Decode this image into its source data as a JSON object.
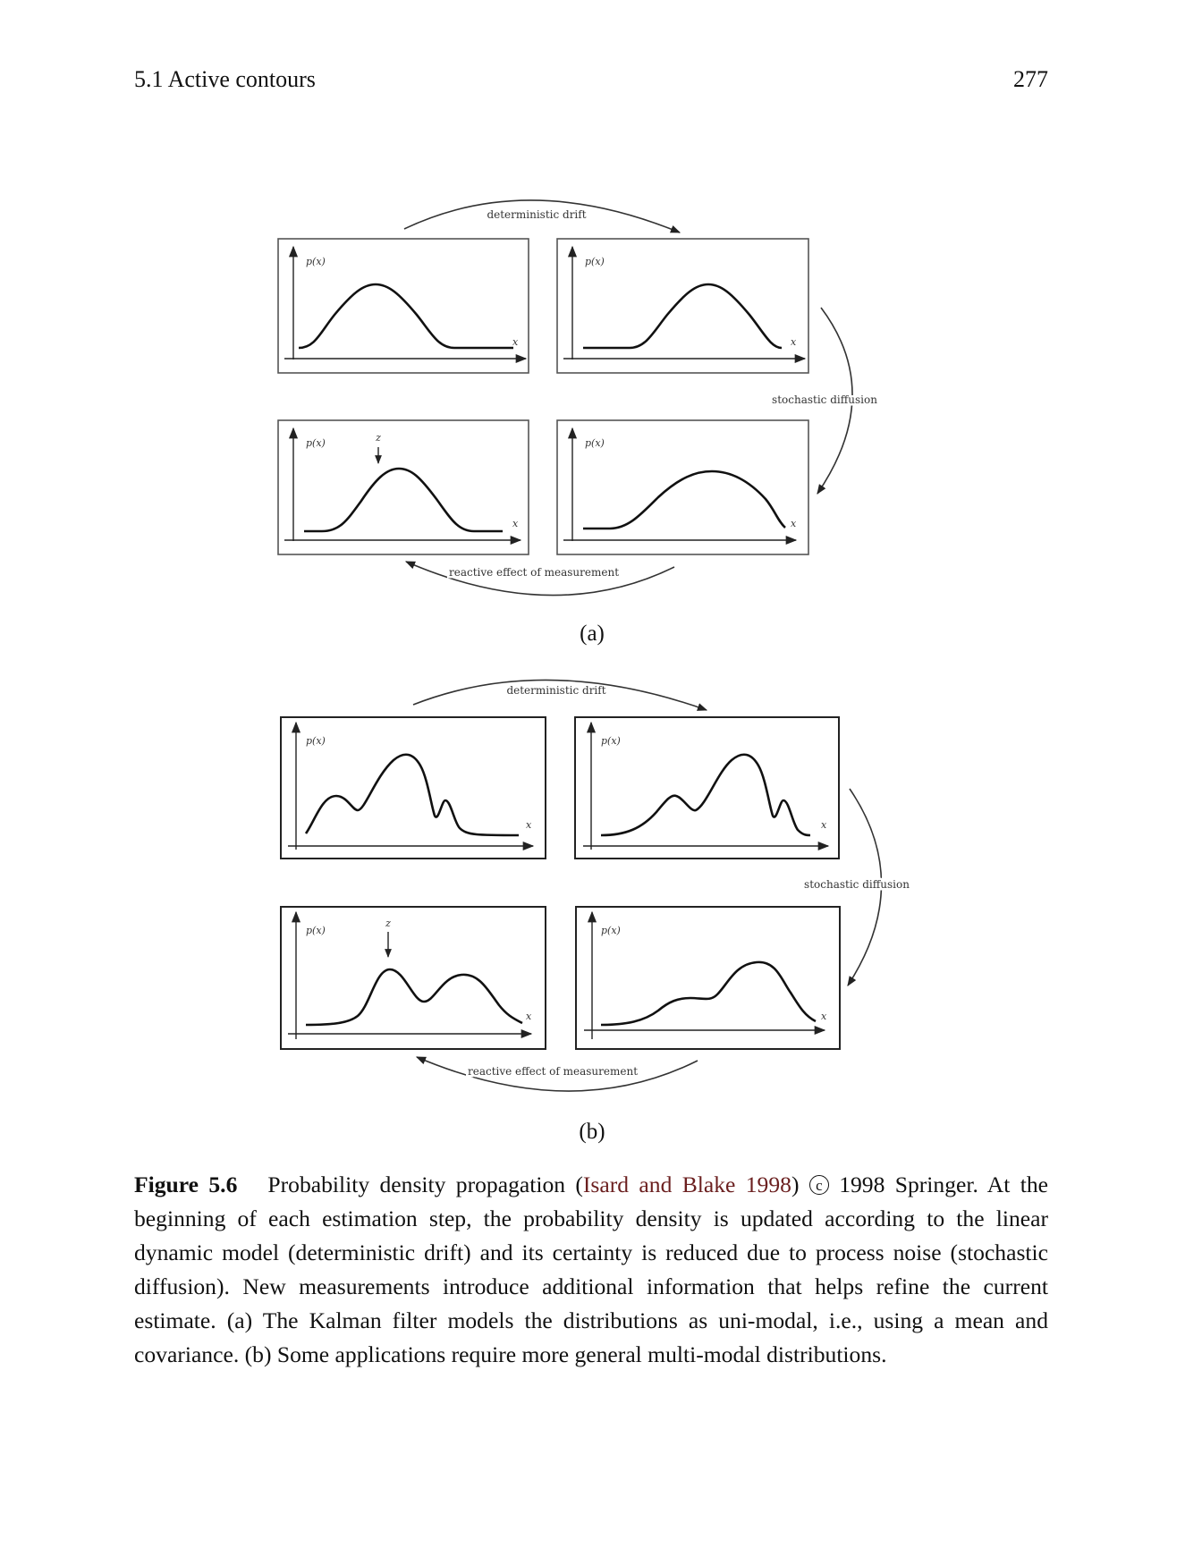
{
  "header": {
    "section": "5.1 Active contours",
    "page_number": "277"
  },
  "figure": {
    "panels": [
      {
        "tag": "(a)",
        "arrows": {
          "top": "deterministic drift",
          "right": "stochastic diffusion",
          "bottom": "reactive effect of measurement"
        },
        "ylabel": "p(x)",
        "xlabel": "x",
        "measurement": "z"
      },
      {
        "tag": "(b)",
        "arrows": {
          "top": "deterministic drift",
          "right": "stochastic diffusion",
          "bottom": "reactive effect of measurement"
        },
        "ylabel": "p(x)",
        "xlabel": "x",
        "measurement": "z"
      }
    ]
  },
  "caption": {
    "label": "Figure 5.6",
    "text_before_cite": "Probability density propagation (",
    "cite": "Isard and Blake 1998",
    "text_after_cite": ")",
    "copyright_symbol": "c",
    "text_rest": "1998 Springer. At the beginning of each estimation step, the probability density is updated according to the linear dynamic model (deterministic drift) and its certainty is reduced due to process noise (stochastic diffusion). New measurements introduce additional information that helps refine the current estimate. (a) The Kalman filter models the distributions as uni-modal, i.e., using a mean and covariance. (b) Some applications require more general multi-modal distributions."
  }
}
